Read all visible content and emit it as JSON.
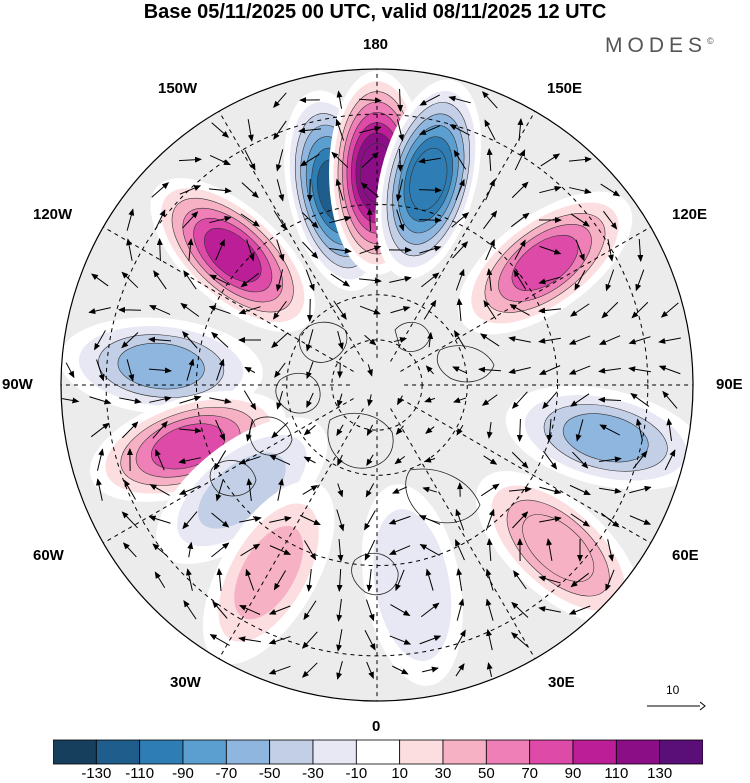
{
  "title": "Base 05/11/2025 00 UTC, valid 08/11/2025 12 UTC",
  "brand": "MODES",
  "brand_mark": "©",
  "longitude_labels": {
    "top": "180",
    "bottom": "0",
    "left": "90W",
    "right": "90E",
    "w150": "150W",
    "e150": "150E",
    "w120": "120W",
    "e120": "120E",
    "w60": "60W",
    "e60": "60E",
    "w30": "30W",
    "e30": "30E"
  },
  "vector_scale": {
    "value": "10"
  },
  "colorbar": {
    "labels": [
      "-130",
      "-110",
      "-90",
      "-70",
      "-50",
      "-30",
      "-10",
      "10",
      "30",
      "50",
      "70",
      "90",
      "110",
      "130"
    ],
    "colors": [
      "#163f5e",
      "#1f5d8c",
      "#2f7db5",
      "#5b9fd0",
      "#8fb6de",
      "#c2cfe6",
      "#e7e8f3",
      "#ffffff",
      "#fcdde0",
      "#f6b2c4",
      "#ee7fb7",
      "#dd4aa8",
      "#bb1e96",
      "#8b0e86",
      "#5a0e78"
    ]
  },
  "anomaly_centers": [
    {
      "name": "blue-170W",
      "value": -125,
      "lon": -168,
      "lat": 46
    },
    {
      "name": "purple-180",
      "value": 130,
      "lon": 180,
      "lat": 43
    },
    {
      "name": "blue-165E",
      "value": -110,
      "lon": 166,
      "lat": 43
    },
    {
      "name": "pink-130W",
      "value": 95,
      "lon": -132,
      "lat": 47
    },
    {
      "name": "pink-120E",
      "value": 85,
      "lon": 126,
      "lat": 44
    },
    {
      "name": "blue-95W",
      "value": -55,
      "lon": -95,
      "lat": 42
    },
    {
      "name": "pink-75W",
      "value": 75,
      "lon": -72,
      "lat": 46
    },
    {
      "name": "blue-75E",
      "value": -60,
      "lon": 77,
      "lat": 38
    },
    {
      "name": "pink-45E",
      "value": 50,
      "lon": 48,
      "lat": 36
    },
    {
      "name": "blue-50W",
      "value": -40,
      "lon": -52,
      "lat": 52
    },
    {
      "name": "pink-30W",
      "value": 45,
      "lon": -30,
      "lat": 42
    },
    {
      "name": "blue-10E",
      "value": -30,
      "lon": 10,
      "lat": 45
    }
  ]
}
